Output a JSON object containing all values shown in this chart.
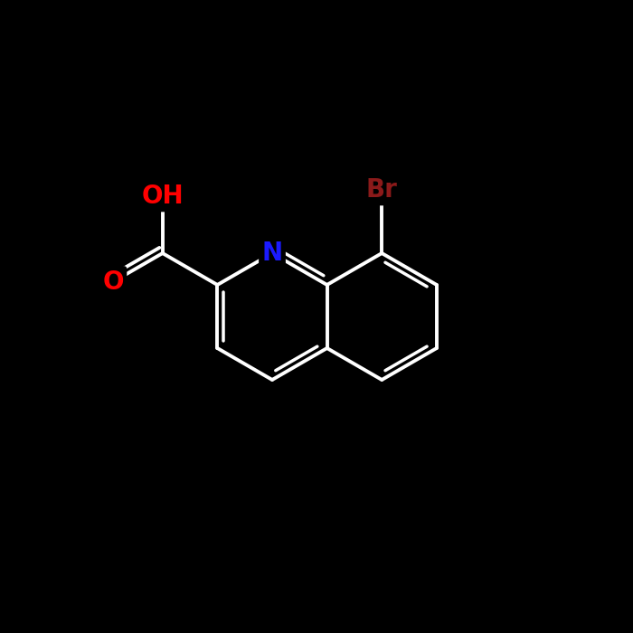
{
  "background_color": "#000000",
  "bond_color": "#ffffff",
  "bond_width": 2.8,
  "atom_labels": {
    "N": {
      "color": "#1a1aff",
      "fontsize": 20,
      "fontweight": "bold"
    },
    "O": {
      "color": "#ff0000",
      "fontsize": 20,
      "fontweight": "bold"
    },
    "OH": {
      "color": "#ff0000",
      "fontsize": 20,
      "fontweight": "bold"
    },
    "Br": {
      "color": "#8b1a1a",
      "fontsize": 20,
      "fontweight": "bold"
    }
  },
  "figsize": [
    7.0,
    7.0
  ],
  "dpi": 100
}
